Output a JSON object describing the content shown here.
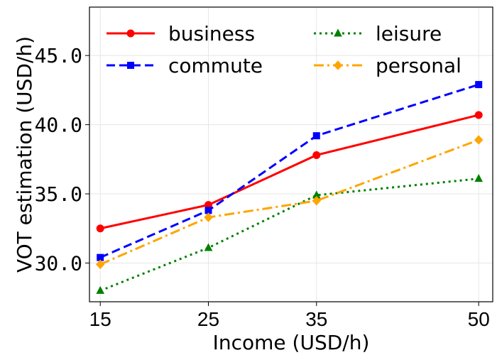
{
  "chart_data": {
    "type": "line",
    "xlabel": "Income (USD/h)",
    "ylabel": "VOT estimation (USD/h)",
    "x": [
      15,
      25,
      35,
      50
    ],
    "x_tick_labels": [
      "15",
      "25",
      "35",
      "50"
    ],
    "y_ticks": [
      30,
      35,
      40,
      45
    ],
    "y_tick_labels": [
      "30.0",
      "35.0",
      "40.0",
      "45.0"
    ],
    "xlim": [
      14,
      51.3
    ],
    "ylim": [
      27.2,
      48.5
    ],
    "grid": true,
    "legend_position": "top",
    "series": [
      {
        "name": "business",
        "values": [
          32.5,
          34.2,
          37.8,
          40.7
        ],
        "color": "#ff0000",
        "dash": "solid",
        "marker": "circle"
      },
      {
        "name": "commute",
        "values": [
          30.4,
          33.8,
          39.2,
          42.9
        ],
        "color": "#0000ff",
        "dash": "dashed",
        "marker": "square"
      },
      {
        "name": "leisure",
        "values": [
          28.0,
          31.1,
          34.9,
          36.1
        ],
        "color": "#008000",
        "dash": "dotted",
        "marker": "triangle"
      },
      {
        "name": "personal",
        "values": [
          29.9,
          33.3,
          34.5,
          38.9
        ],
        "color": "#ffa500",
        "dash": "dashdot",
        "marker": "diamond"
      }
    ]
  }
}
